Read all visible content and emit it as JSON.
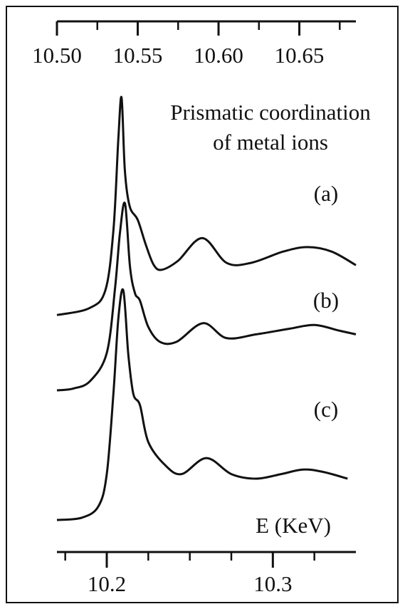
{
  "chart_data": {
    "type": "line",
    "annotation": [
      "Prismatic coordination",
      "of metal ions"
    ],
    "top_axis": {
      "ticks": [
        10.5,
        10.55,
        10.6,
        10.65
      ],
      "tick_labels": [
        "10.50",
        "10.55",
        "10.60",
        "10.65"
      ],
      "range": [
        10.5,
        10.685
      ]
    },
    "bottom_axis": {
      "label": "E (KeV)",
      "ticks": [
        10.2,
        10.3
      ],
      "tick_labels": [
        "10.2",
        "10.3"
      ],
      "range": [
        10.17,
        10.35
      ]
    },
    "grid": false,
    "legend": "none",
    "series": [
      {
        "name": "(a)",
        "axis": "top",
        "x": [
          10.5,
          10.52,
          10.53,
          10.535,
          10.538,
          10.54,
          10.542,
          10.545,
          10.55,
          10.555,
          10.56,
          10.565,
          10.575,
          10.59,
          10.605,
          10.62,
          10.64,
          10.655,
          10.67,
          10.685
        ],
        "y": [
          0.04,
          0.07,
          0.15,
          0.42,
          0.82,
          1.0,
          0.68,
          0.52,
          0.46,
          0.35,
          0.26,
          0.24,
          0.28,
          0.38,
          0.27,
          0.27,
          0.32,
          0.34,
          0.32,
          0.26
        ]
      },
      {
        "name": "(b)",
        "axis": "bottom",
        "x": [
          10.17,
          10.18,
          10.19,
          10.2,
          10.205,
          10.208,
          10.211,
          10.214,
          10.217,
          10.22,
          10.225,
          10.232,
          10.242,
          10.258,
          10.272,
          10.29,
          10.31,
          10.325,
          10.34,
          10.35
        ],
        "y": [
          0.0,
          0.01,
          0.05,
          0.2,
          0.55,
          0.85,
          1.0,
          0.66,
          0.52,
          0.48,
          0.34,
          0.26,
          0.26,
          0.36,
          0.28,
          0.3,
          0.33,
          0.35,
          0.32,
          0.3
        ]
      },
      {
        "name": "(c)",
        "axis": "bottom",
        "x": [
          10.17,
          10.185,
          10.195,
          10.2,
          10.204,
          10.207,
          10.21,
          10.213,
          10.216,
          10.22,
          10.225,
          10.235,
          10.245,
          10.26,
          10.275,
          10.29,
          10.305,
          10.318,
          10.33,
          10.345
        ],
        "y": [
          0.0,
          0.01,
          0.06,
          0.2,
          0.55,
          0.88,
          1.0,
          0.72,
          0.55,
          0.5,
          0.34,
          0.24,
          0.2,
          0.27,
          0.2,
          0.18,
          0.2,
          0.22,
          0.21,
          0.18
        ]
      }
    ]
  }
}
